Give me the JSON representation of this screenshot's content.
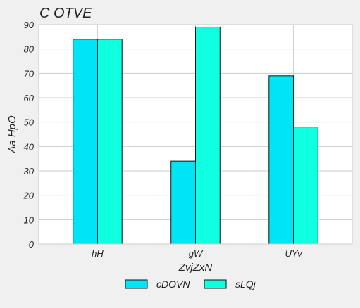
{
  "chart_data": {
    "type": "bar",
    "title": "C OTVE",
    "xlabel": "ZvjZxN",
    "ylabel": "Aa  HpO",
    "categories": [
      "hH",
      "gW",
      "UYv"
    ],
    "series": [
      {
        "name": "cDOVN",
        "values": [
          84,
          34,
          69
        ],
        "color": "#00e5f5"
      },
      {
        "name": "sLQj",
        "values": [
          84,
          89,
          48
        ],
        "color": "#10ffe0"
      }
    ],
    "ylim": [
      0,
      90
    ],
    "yticks": [
      0,
      10,
      20,
      30,
      40,
      50,
      60,
      70,
      80,
      90
    ],
    "grid": true,
    "legend_position": "bottom-center"
  }
}
